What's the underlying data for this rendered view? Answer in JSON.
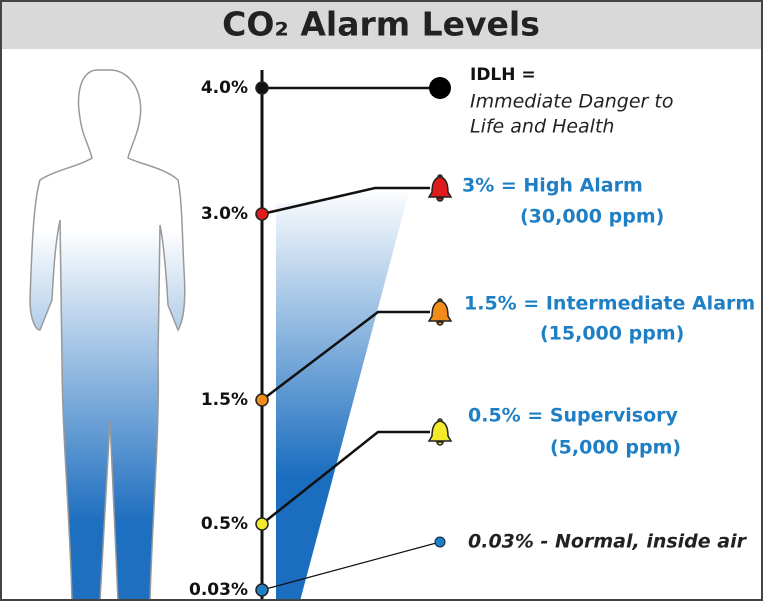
{
  "title": "CO₂ Alarm Levels",
  "levels": [
    {
      "label": "4.0%",
      "lines": [
        "IDLH =",
        "Immediate Danger to",
        "Life and Health"
      ]
    },
    {
      "label": "3.0%",
      "lines": [
        "3% = High Alarm",
        "(30,000 ppm)"
      ]
    },
    {
      "label": "1.5%",
      "lines": [
        "1.5% = Intermediate Alarm",
        "(15,000 ppm)"
      ]
    },
    {
      "label": "0.5%",
      "lines": [
        "0.5% = Supervisory",
        "(5,000 ppm)"
      ]
    },
    {
      "label": "0.03%",
      "lines": [
        "0.03% - Normal, inside air"
      ]
    }
  ]
}
